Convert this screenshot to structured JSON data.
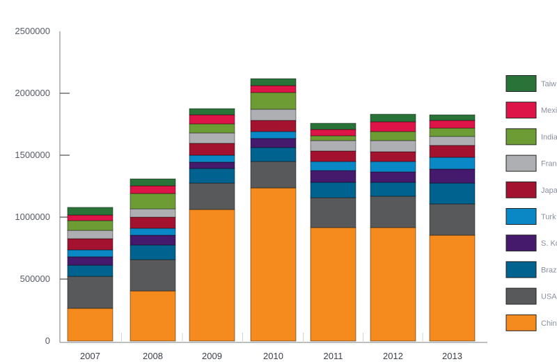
{
  "chart_data": {
    "type": "bar",
    "stacked": true,
    "title": "",
    "xlabel": "",
    "ylabel": "",
    "ylim": [
      0,
      2500000
    ],
    "yticks": [
      0,
      500000,
      1000000,
      1500000,
      2000000,
      2500000
    ],
    "ytick_labels": [
      "0",
      "500000",
      "1000000",
      "1500000",
      "2000000",
      "2500000"
    ],
    "categories": [
      "2007",
      "2008",
      "2009",
      "2010",
      "2011",
      "2012",
      "2013"
    ],
    "grid": false,
    "legend_position": "right",
    "series": [
      {
        "name": "Chin",
        "color": "#f58a1f",
        "values": [
          264000,
          404000,
          1062000,
          1236000,
          916000,
          916000,
          854000
        ]
      },
      {
        "name": "USA",
        "color": "#58595b",
        "values": [
          258000,
          253000,
          213000,
          213000,
          241000,
          253000,
          253000
        ]
      },
      {
        "name": "Braz",
        "color": "#00628f",
        "values": [
          90000,
          118000,
          118000,
          113000,
          124000,
          112000,
          168000
        ]
      },
      {
        "name": "S. Ko",
        "color": "#45196b",
        "values": [
          68000,
          79000,
          51000,
          73000,
          95000,
          84000,
          113000
        ]
      },
      {
        "name": "Turk",
        "color": "#0a87c5",
        "values": [
          56000,
          56000,
          56000,
          56000,
          73000,
          84000,
          95000
        ]
      },
      {
        "name": "Japa",
        "color": "#a3122f",
        "values": [
          90000,
          90000,
          96000,
          90000,
          85000,
          79000,
          96000
        ]
      },
      {
        "name": "Fran",
        "color": "#aeafb2",
        "values": [
          67000,
          67000,
          84000,
          90000,
          84000,
          90000,
          73000
        ]
      },
      {
        "name": "India",
        "color": "#6d9c35",
        "values": [
          79000,
          124000,
          73000,
          135000,
          39000,
          73000,
          67000
        ]
      },
      {
        "name": "Mexi",
        "color": "#dc1448",
        "values": [
          45000,
          62000,
          73000,
          56000,
          51000,
          79000,
          62000
        ]
      },
      {
        "name": "Taiw",
        "color": "#2a7338",
        "values": [
          62000,
          56000,
          50000,
          56000,
          50000,
          61000,
          45000
        ]
      }
    ]
  }
}
